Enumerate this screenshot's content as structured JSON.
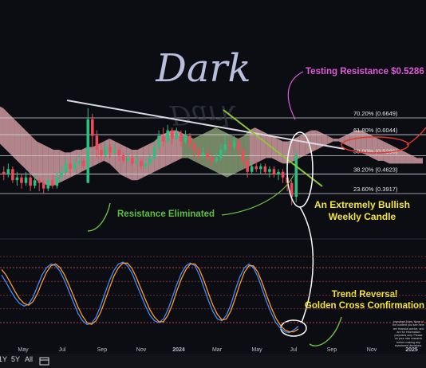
{
  "title": "Dark",
  "chart_data": [
    {
      "type": "candlestick",
      "fib_levels": [
        {
          "label": "70.20% (0.6649)",
          "value": 0.6649
        },
        {
          "label": "61.80% (0.6044)",
          "value": 0.6044
        },
        {
          "label": "50.00% (0.5286)",
          "value": 0.5286
        },
        {
          "label": "38.20% (0.4623)",
          "value": 0.4623
        },
        {
          "label": "23.60% (0.3917)",
          "value": 0.3917
        }
      ],
      "annotations": [
        {
          "text": "Testing Resistance $0.5286",
          "color": "#e05ad6"
        },
        {
          "text": "Resistance Eliminated",
          "color": "#5fbf3f"
        },
        {
          "text": "An Extremely Bullish",
          "color": "#f5e63a"
        },
        {
          "text": "Weekly Candle",
          "color": "#f5e63a"
        }
      ],
      "candles": [
        [
          0.47,
          0.46,
          0.49,
          0.44
        ],
        [
          0.46,
          0.48,
          0.5,
          0.45
        ],
        [
          0.48,
          0.44,
          0.49,
          0.43
        ],
        [
          0.44,
          0.45,
          0.47,
          0.42
        ],
        [
          0.45,
          0.43,
          0.46,
          0.41
        ],
        [
          0.43,
          0.45,
          0.47,
          0.42
        ],
        [
          0.45,
          0.42,
          0.46,
          0.4
        ],
        [
          0.42,
          0.44,
          0.46,
          0.41
        ],
        [
          0.44,
          0.43,
          0.45,
          0.4
        ],
        [
          0.43,
          0.41,
          0.44,
          0.39
        ],
        [
          0.41,
          0.44,
          0.45,
          0.4
        ],
        [
          0.44,
          0.42,
          0.46,
          0.41
        ],
        [
          0.42,
          0.45,
          0.47,
          0.41
        ],
        [
          0.45,
          0.47,
          0.49,
          0.44
        ],
        [
          0.47,
          0.5,
          0.52,
          0.46
        ],
        [
          0.5,
          0.48,
          0.51,
          0.46
        ],
        [
          0.48,
          0.5,
          0.52,
          0.47
        ],
        [
          0.5,
          0.51,
          0.53,
          0.49
        ],
        [
          0.51,
          0.49,
          0.52,
          0.48
        ],
        [
          0.43,
          0.66,
          0.7,
          0.43
        ],
        [
          0.66,
          0.6,
          0.68,
          0.56
        ],
        [
          0.6,
          0.55,
          0.62,
          0.52
        ],
        [
          0.55,
          0.53,
          0.57,
          0.51
        ],
        [
          0.53,
          0.56,
          0.58,
          0.52
        ],
        [
          0.56,
          0.54,
          0.57,
          0.52
        ],
        [
          0.54,
          0.55,
          0.57,
          0.53
        ],
        [
          0.55,
          0.53,
          0.56,
          0.51
        ],
        [
          0.53,
          0.51,
          0.54,
          0.5
        ],
        [
          0.51,
          0.52,
          0.54,
          0.5
        ],
        [
          0.52,
          0.5,
          0.53,
          0.49
        ],
        [
          0.5,
          0.51,
          0.53,
          0.49
        ],
        [
          0.51,
          0.49,
          0.52,
          0.48
        ],
        [
          0.49,
          0.5,
          0.52,
          0.48
        ],
        [
          0.5,
          0.52,
          0.54,
          0.49
        ],
        [
          0.52,
          0.56,
          0.58,
          0.51
        ],
        [
          0.56,
          0.6,
          0.62,
          0.55
        ],
        [
          0.6,
          0.58,
          0.63,
          0.56
        ],
        [
          0.58,
          0.62,
          0.64,
          0.57
        ],
        [
          0.62,
          0.59,
          0.63,
          0.57
        ],
        [
          0.59,
          0.61,
          0.63,
          0.58
        ],
        [
          0.61,
          0.58,
          0.62,
          0.56
        ],
        [
          0.58,
          0.6,
          0.62,
          0.57
        ],
        [
          0.6,
          0.57,
          0.61,
          0.55
        ],
        [
          0.57,
          0.55,
          0.58,
          0.52
        ],
        [
          0.55,
          0.53,
          0.56,
          0.51
        ],
        [
          0.53,
          0.54,
          0.56,
          0.52
        ],
        [
          0.54,
          0.52,
          0.55,
          0.5
        ],
        [
          0.52,
          0.51,
          0.53,
          0.49
        ],
        [
          0.51,
          0.52,
          0.54,
          0.5
        ],
        [
          0.52,
          0.55,
          0.57,
          0.51
        ],
        [
          0.55,
          0.57,
          0.6,
          0.54
        ],
        [
          0.57,
          0.56,
          0.59,
          0.54
        ],
        [
          0.56,
          0.58,
          0.6,
          0.55
        ],
        [
          0.58,
          0.55,
          0.59,
          0.53
        ],
        [
          0.55,
          0.51,
          0.56,
          0.49
        ],
        [
          0.51,
          0.47,
          0.52,
          0.45
        ],
        [
          0.47,
          0.49,
          0.51,
          0.46
        ],
        [
          0.49,
          0.48,
          0.51,
          0.47
        ],
        [
          0.48,
          0.49,
          0.5,
          0.46
        ],
        [
          0.49,
          0.47,
          0.5,
          0.46
        ],
        [
          0.47,
          0.48,
          0.49,
          0.45
        ],
        [
          0.48,
          0.46,
          0.49,
          0.45
        ],
        [
          0.46,
          0.47,
          0.48,
          0.44
        ],
        [
          0.47,
          0.45,
          0.48,
          0.43
        ],
        [
          0.45,
          0.43,
          0.46,
          0.4
        ],
        [
          0.43,
          0.38,
          0.44,
          0.35
        ],
        [
          0.38,
          0.53,
          0.55,
          0.36
        ]
      ],
      "ichimoku_cloud": {
        "upper": [
          0.7,
          0.71,
          0.7,
          0.68,
          0.66,
          0.64,
          0.62,
          0.6,
          0.58,
          0.57,
          0.56,
          0.55,
          0.55,
          0.54,
          0.54,
          0.55,
          0.55,
          0.56,
          0.56,
          0.57,
          0.58,
          0.59,
          0.58,
          0.57,
          0.56,
          0.55,
          0.55,
          0.56,
          0.57,
          0.58,
          0.6,
          0.61,
          0.62,
          0.62,
          0.61,
          0.6,
          0.59,
          0.6,
          0.61,
          0.62,
          0.63,
          0.62,
          0.61,
          0.6,
          0.59,
          0.6,
          0.62,
          0.63,
          0.62,
          0.61,
          0.6,
          0.59,
          0.58,
          0.58,
          0.59,
          0.6,
          0.61,
          0.62,
          0.62,
          0.61,
          0.6,
          0.59,
          0.59,
          0.6,
          0.61,
          0.62,
          0.62,
          0.61,
          0.6,
          0.59,
          0.58,
          0.57,
          0.56,
          0.55,
          0.54,
          0.53,
          0.52,
          0.52
        ],
        "lower": [
          0.6,
          0.58,
          0.56,
          0.54,
          0.52,
          0.5,
          0.48,
          0.46,
          0.44,
          0.43,
          0.42,
          0.42,
          0.43,
          0.44,
          0.45,
          0.46,
          0.47,
          0.48,
          0.49,
          0.5,
          0.51,
          0.5,
          0.48,
          0.46,
          0.45,
          0.44,
          0.44,
          0.45,
          0.46,
          0.47,
          0.48,
          0.49,
          0.5,
          0.51,
          0.52,
          0.52,
          0.51,
          0.5,
          0.49,
          0.48,
          0.47,
          0.46,
          0.45,
          0.46,
          0.47,
          0.48,
          0.49,
          0.5,
          0.51,
          0.52,
          0.52,
          0.51,
          0.5,
          0.5,
          0.51,
          0.52,
          0.53,
          0.54,
          0.55,
          0.56,
          0.57,
          0.58,
          0.58,
          0.57,
          0.56,
          0.55,
          0.54,
          0.53,
          0.52,
          0.51,
          0.51,
          0.5,
          0.5,
          0.5,
          0.5,
          0.5,
          0.5,
          0.5
        ]
      },
      "cloud_colors": {
        "bear": "#d9a3a8",
        "bull": "#8fa67a"
      }
    },
    {
      "type": "line",
      "ylim": [
        0,
        100
      ],
      "series": [
        {
          "color": "#3c8cff",
          "values": [
            72,
            64,
            55,
            47,
            41,
            38,
            40,
            48,
            60,
            72,
            80,
            84,
            82,
            76,
            66,
            54,
            42,
            30,
            22,
            18,
            19,
            26,
            38,
            52,
            66,
            77,
            84,
            86,
            82,
            74,
            62,
            50,
            38,
            28,
            22,
            20,
            24,
            34,
            48,
            62,
            74,
            82,
            85,
            82,
            72,
            58,
            44,
            32,
            24,
            22,
            28,
            40,
            56,
            70,
            80,
            84,
            80,
            70,
            56,
            42,
            30,
            20,
            14,
            10,
            9,
            12,
            16
          ]
        },
        {
          "color": "#ff9a2e",
          "values": [
            78,
            72,
            63,
            54,
            46,
            41,
            39,
            43,
            52,
            64,
            75,
            82,
            84,
            80,
            72,
            61,
            49,
            37,
            27,
            20,
            18,
            22,
            31,
            44,
            58,
            71,
            80,
            85,
            85,
            79,
            69,
            57,
            45,
            34,
            26,
            21,
            21,
            28,
            40,
            55,
            68,
            78,
            84,
            84,
            78,
            66,
            52,
            39,
            29,
            23,
            24,
            33,
            47,
            62,
            75,
            82,
            82,
            75,
            63,
            49,
            36,
            25,
            17,
            12,
            10,
            10,
            13
          ]
        }
      ],
      "annotations": [
        {
          "text": "Trend Reversal",
          "color": "#f5e63a"
        },
        {
          "text": "Golden Cross Confirmation",
          "color": "#f5e63a"
        }
      ]
    }
  ],
  "axis": {
    "x_ticks": [
      "May",
      "Jul",
      "Sep",
      "Nov",
      "2024",
      "Mar",
      "May",
      "Jul",
      "Sep",
      "Nov",
      "2025"
    ]
  },
  "footer": {
    "tf1": "1Y",
    "tf2": "5Y",
    "tf3": "All"
  },
  "disclaimer": "Important Note: None of the content you see here are financial advice, and are for information purposes only. Please do your own research before making any investment decisions."
}
